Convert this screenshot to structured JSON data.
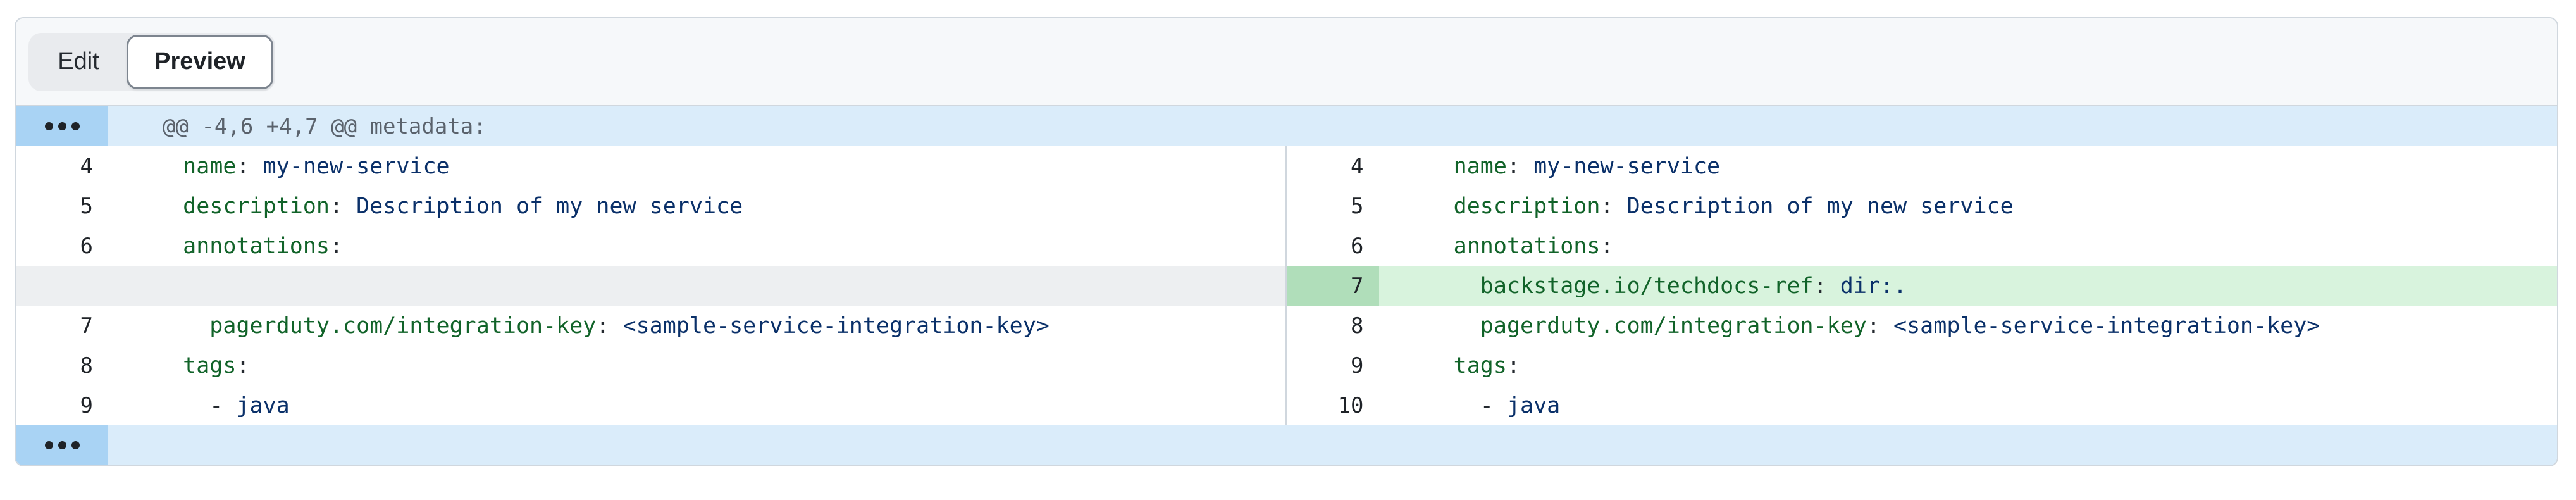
{
  "header": {
    "tabs": [
      {
        "id": "edit",
        "label": "Edit",
        "selected": false
      },
      {
        "id": "preview",
        "label": "Preview",
        "selected": true
      }
    ]
  },
  "diff": {
    "hunk_header": "@@ -4,6 +4,7 @@ metadata:",
    "expander_icon": "ellipsis-dots",
    "rows": [
      {
        "kind": "hunk"
      },
      {
        "kind": "code",
        "left": {
          "num": "4",
          "state": "context",
          "segments": [
            [
              "  ",
              "plain"
            ],
            [
              "name",
              "key"
            ],
            [
              ":",
              "plain"
            ],
            [
              " my-new-service",
              "string"
            ]
          ]
        },
        "right": {
          "num": "4",
          "state": "context",
          "segments": [
            [
              "  ",
              "plain"
            ],
            [
              "name",
              "key"
            ],
            [
              ":",
              "plain"
            ],
            [
              " my-new-service",
              "string"
            ]
          ]
        }
      },
      {
        "kind": "code",
        "left": {
          "num": "5",
          "state": "context",
          "segments": [
            [
              "  ",
              "plain"
            ],
            [
              "description",
              "key"
            ],
            [
              ":",
              "plain"
            ],
            [
              " Description of my new service",
              "string"
            ]
          ]
        },
        "right": {
          "num": "5",
          "state": "context",
          "segments": [
            [
              "  ",
              "plain"
            ],
            [
              "description",
              "key"
            ],
            [
              ":",
              "plain"
            ],
            [
              " Description of my new service",
              "string"
            ]
          ]
        }
      },
      {
        "kind": "code",
        "left": {
          "num": "6",
          "state": "context",
          "segments": [
            [
              "  ",
              "plain"
            ],
            [
              "annotations",
              "key"
            ],
            [
              ":",
              "plain"
            ]
          ]
        },
        "right": {
          "num": "6",
          "state": "context",
          "segments": [
            [
              "  ",
              "plain"
            ],
            [
              "annotations",
              "key"
            ],
            [
              ":",
              "plain"
            ]
          ]
        }
      },
      {
        "kind": "code",
        "left": {
          "state": "empty",
          "segments": []
        },
        "right": {
          "num": "7",
          "state": "added",
          "segments": [
            [
              "    ",
              "plain"
            ],
            [
              "backstage.io/techdocs-ref",
              "key"
            ],
            [
              ":",
              "plain"
            ],
            [
              " dir:.",
              "string"
            ]
          ]
        }
      },
      {
        "kind": "code",
        "left": {
          "num": "7",
          "state": "context",
          "segments": [
            [
              "    ",
              "plain"
            ],
            [
              "pagerduty.com/integration-key",
              "key"
            ],
            [
              ":",
              "plain"
            ],
            [
              " <sample-service-integration-key>",
              "string"
            ]
          ]
        },
        "right": {
          "num": "8",
          "state": "context",
          "segments": [
            [
              "    ",
              "plain"
            ],
            [
              "pagerduty.com/integration-key",
              "key"
            ],
            [
              ":",
              "plain"
            ],
            [
              " <sample-service-integration-key>",
              "string"
            ]
          ]
        }
      },
      {
        "kind": "code",
        "left": {
          "num": "8",
          "state": "context",
          "segments": [
            [
              "  ",
              "plain"
            ],
            [
              "tags",
              "key"
            ],
            [
              ":",
              "plain"
            ]
          ]
        },
        "right": {
          "num": "9",
          "state": "context",
          "segments": [
            [
              "  ",
              "plain"
            ],
            [
              "tags",
              "key"
            ],
            [
              ":",
              "plain"
            ]
          ]
        }
      },
      {
        "kind": "code",
        "left": {
          "num": "9",
          "state": "context",
          "segments": [
            [
              "    - ",
              "plain"
            ],
            [
              "java",
              "string"
            ]
          ]
        },
        "right": {
          "num": "10",
          "state": "context",
          "segments": [
            [
              "    - ",
              "plain"
            ],
            [
              "java",
              "string"
            ]
          ]
        }
      },
      {
        "kind": "expander"
      }
    ]
  },
  "colors": {
    "card_border": "#d0d7de",
    "header_bg": "#f6f8fa",
    "segmented_bg": "#e9ebee",
    "preview_border": "#7d858f",
    "accent_hunk_gutter": "#a9d3f4",
    "hunk_bg": "#daecfa",
    "hunk_text": "#5a626c",
    "added_gutter_bg": "#b0deba",
    "added_line_bg": "#d8f3dd",
    "empty_line_bg": "#edeff1",
    "yaml_key": "#116329",
    "yaml_string": "#0a3069",
    "code_plain": "#24292f",
    "line_number": "#1f2328"
  }
}
